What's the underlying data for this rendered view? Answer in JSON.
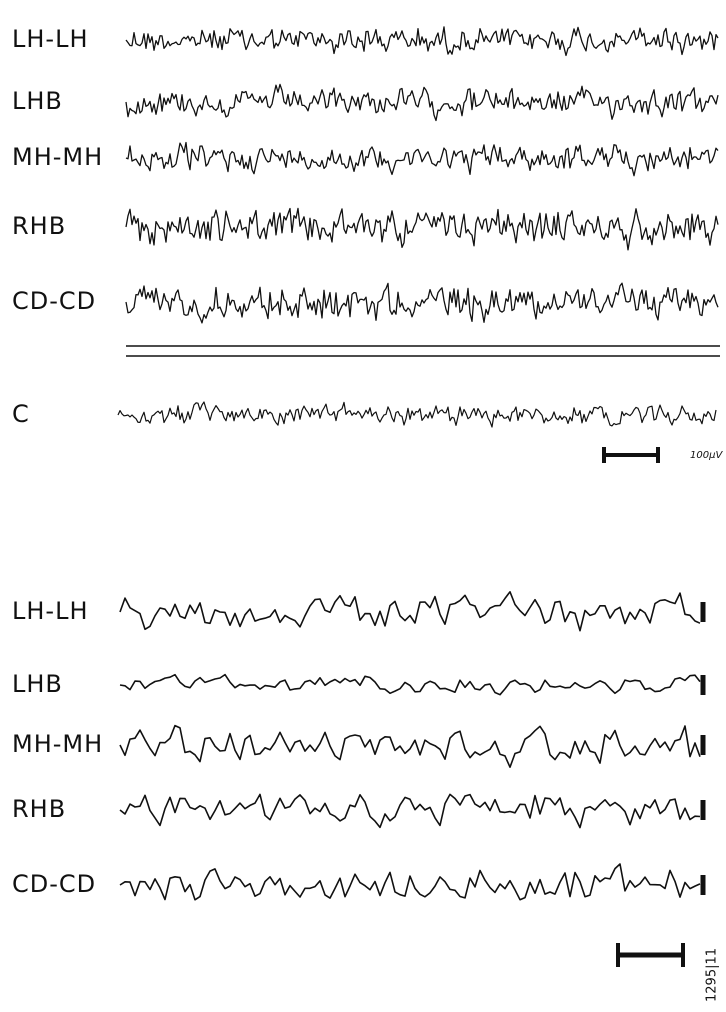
{
  "top_panel": {
    "channels": [
      "LH-LH",
      "LHB",
      "MH-MH",
      "RHB",
      "CD-CD"
    ],
    "extra_channel": "C",
    "calibration_label": "100μV"
  },
  "bottom_panel": {
    "channels": [
      "LH-LH",
      "LHB",
      "MH-MH",
      "RHB",
      "CD-CD"
    ]
  },
  "figure_id": "1295|11"
}
